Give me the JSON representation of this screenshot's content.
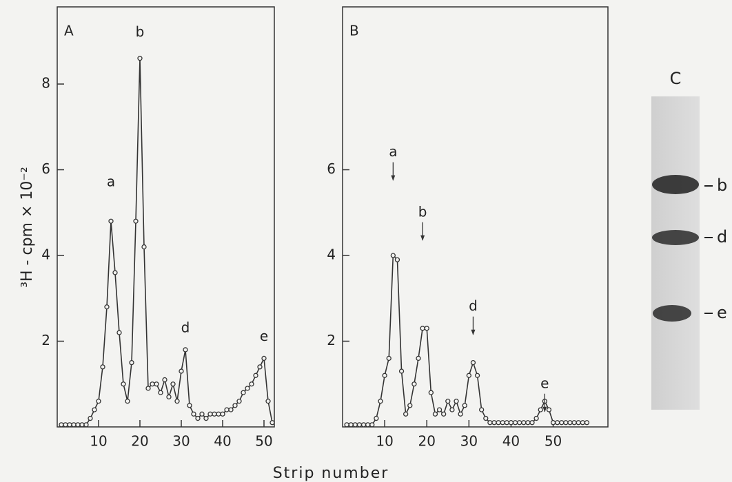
{
  "chart_data": [
    {
      "type": "line",
      "panel": "A",
      "color": "#333333",
      "ylabel": "³H - cpm × 10⁻²",
      "xlabel": "Strip number",
      "x": [
        1,
        2,
        3,
        4,
        5,
        6,
        7,
        8,
        9,
        10,
        11,
        12,
        13,
        14,
        15,
        16,
        17,
        18,
        19,
        20,
        21,
        22,
        23,
        24,
        25,
        26,
        27,
        28,
        29,
        30,
        31,
        32,
        33,
        34,
        35,
        36,
        37,
        38,
        39,
        40,
        41,
        42,
        43,
        44,
        45,
        46,
        47,
        48,
        49,
        50,
        51,
        52
      ],
      "values": [
        0.05,
        0.05,
        0.05,
        0.05,
        0.05,
        0.05,
        0.05,
        0.2,
        0.4,
        0.6,
        1.4,
        2.8,
        4.8,
        3.6,
        2.2,
        1.0,
        0.6,
        1.5,
        4.8,
        8.6,
        4.2,
        0.9,
        1.0,
        1.0,
        0.8,
        1.1,
        0.7,
        1.0,
        0.6,
        1.3,
        1.8,
        0.5,
        0.3,
        0.2,
        0.3,
        0.2,
        0.3,
        0.3,
        0.3,
        0.3,
        0.4,
        0.4,
        0.5,
        0.6,
        0.8,
        0.9,
        1.0,
        1.2,
        1.4,
        1.6,
        0.6,
        0.1
      ],
      "xlim": [
        0,
        52.5
      ],
      "ylim": [
        0,
        9.8
      ],
      "xticks": [
        10,
        20,
        30,
        40,
        50
      ],
      "yticks": [
        2,
        4,
        6,
        8
      ],
      "arrows": false,
      "annotations": [
        {
          "text": "a",
          "x": 13,
          "y": 5.7
        },
        {
          "text": "b",
          "x": 20,
          "y": 9.2
        },
        {
          "text": "d",
          "x": 31,
          "y": 2.3
        },
        {
          "text": "e",
          "x": 50,
          "y": 2.1
        }
      ]
    },
    {
      "type": "line",
      "panel": "B",
      "color": "#333333",
      "x": [
        1,
        2,
        3,
        4,
        5,
        6,
        7,
        8,
        9,
        10,
        11,
        12,
        13,
        14,
        15,
        16,
        17,
        18,
        19,
        20,
        21,
        22,
        23,
        24,
        25,
        26,
        27,
        28,
        29,
        30,
        31,
        32,
        33,
        34,
        35,
        36,
        37,
        38,
        39,
        40,
        41,
        42,
        43,
        44,
        45,
        46,
        47,
        48,
        49,
        50,
        51,
        52,
        53,
        54,
        55,
        56,
        57,
        58
      ],
      "values": [
        0.05,
        0.05,
        0.05,
        0.05,
        0.05,
        0.05,
        0.05,
        0.2,
        0.6,
        1.2,
        1.6,
        4.0,
        3.9,
        1.3,
        0.3,
        0.5,
        1.0,
        1.6,
        2.3,
        2.3,
        0.8,
        0.3,
        0.4,
        0.3,
        0.6,
        0.4,
        0.6,
        0.3,
        0.5,
        1.2,
        1.5,
        1.2,
        0.4,
        0.2,
        0.1,
        0.1,
        0.1,
        0.1,
        0.1,
        0.1,
        0.1,
        0.1,
        0.1,
        0.1,
        0.1,
        0.2,
        0.4,
        0.6,
        0.4,
        0.1,
        0.1,
        0.1,
        0.1,
        0.1,
        0.1,
        0.1,
        0.1,
        0.1
      ],
      "xlim": [
        0,
        63
      ],
      "ylim": [
        0,
        9.8
      ],
      "xticks": [
        10,
        20,
        30,
        40,
        50
      ],
      "yticks": [
        2,
        4,
        6
      ],
      "arrows": true,
      "annotations": [
        {
          "text": "a",
          "x": 12,
          "y": 6.4
        },
        {
          "text": "b",
          "x": 19,
          "y": 5.0
        },
        {
          "text": "d",
          "x": 31,
          "y": 2.8
        },
        {
          "text": "e",
          "x": 48,
          "y": 1.0
        }
      ]
    }
  ],
  "gel": {
    "label": "C",
    "bands": [
      "b",
      "d",
      "e"
    ]
  }
}
